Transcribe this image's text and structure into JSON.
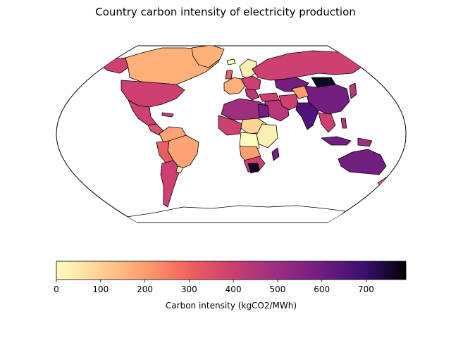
{
  "title": "Country carbon intensity of electricity production",
  "colorbar": {
    "label": "Carbon intensity (kgCO2/MWh)",
    "range": [
      0,
      790
    ],
    "ticks": [
      0,
      100,
      200,
      300,
      400,
      500,
      600,
      700
    ],
    "tick_labels": [
      "0",
      "100",
      "200",
      "300",
      "400",
      "500",
      "600",
      "700"
    ],
    "colormap": "magma_r"
  },
  "map": {
    "projection": "Robinson",
    "ocean_color": "#ffffff",
    "coastline_color": "#000000"
  }
}
